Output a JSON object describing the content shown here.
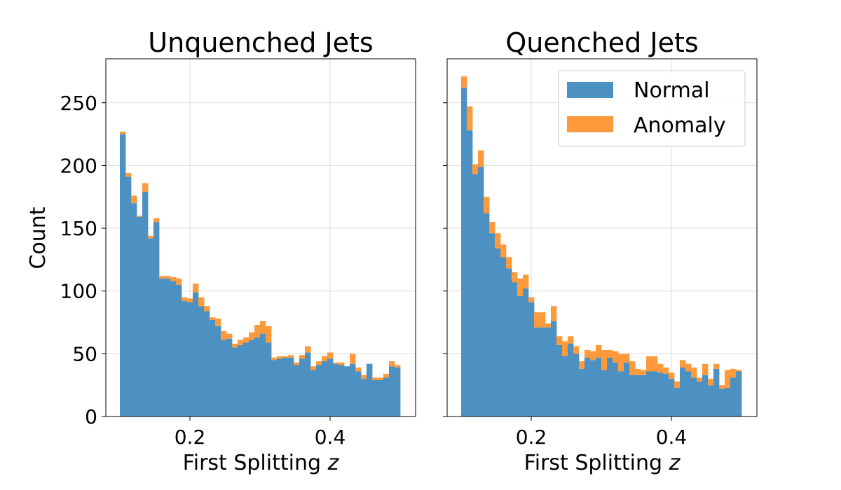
{
  "chart_data": {
    "type": "bar",
    "stacked": true,
    "bins": {
      "start": 0.1,
      "end": 0.5,
      "count": 50
    },
    "ylim": [
      0,
      285
    ],
    "yticks": [
      0,
      50,
      100,
      150,
      200,
      250
    ],
    "xticks": [
      0.2,
      0.4
    ],
    "xtick_labels": [
      "0.2",
      "0.4"
    ],
    "ytick_labels": [
      "0",
      "50",
      "100",
      "150",
      "200",
      "250"
    ],
    "ylabel": "Count",
    "grid": true,
    "legend": {
      "placement": "top-right",
      "entries": [
        {
          "name": "Normal",
          "color": "#4c91c2"
        },
        {
          "name": "Anomaly",
          "color": "#ff9a3c"
        }
      ]
    },
    "panels": [
      {
        "title": "Unquenched Jets",
        "xlabel_text": "First Splitting ",
        "xlabel_var": "z",
        "series": [
          {
            "name": "Normal",
            "color": "#4c91c2",
            "values": [
              225,
              191,
              170,
              159,
              179,
              142,
              155,
              110,
              110,
              108,
              105,
              92,
              91,
              99,
              88,
              84,
              77,
              72,
              61,
              62,
              55,
              57,
              59,
              61,
              63,
              66,
              59,
              45,
              46,
              47,
              47,
              41,
              46,
              51,
              37,
              41,
              44,
              46,
              42,
              41,
              40,
              42,
              36,
              30,
              42,
              29,
              29,
              31,
              40,
              39
            ]
          },
          {
            "name": "Anomaly",
            "color": "#ff9a3c",
            "values": [
              2,
              3,
              6,
              1,
              7,
              2,
              3,
              2,
              2,
              3,
              5,
              3,
              3,
              7,
              7,
              4,
              2,
              6,
              7,
              4,
              3,
              4,
              4,
              6,
              10,
              10,
              13,
              2,
              2,
              1,
              2,
              2,
              3,
              5,
              3,
              3,
              4,
              5,
              1,
              2,
              0,
              8,
              3,
              3,
              0,
              2,
              2,
              3,
              4,
              2
            ]
          }
        ]
      },
      {
        "title": "Quenched Jets",
        "xlabel_text": "First Splitting ",
        "xlabel_var": "z",
        "series": [
          {
            "name": "Normal",
            "color": "#4c91c2",
            "values": [
              262,
              228,
              193,
              199,
              162,
              146,
              134,
              127,
              118,
              107,
              96,
              102,
              91,
              71,
              71,
              71,
              76,
              57,
              48,
              58,
              50,
              38,
              47,
              45,
              47,
              37,
              47,
              43,
              36,
              43,
              33,
              33,
              33,
              36,
              36,
              35,
              34,
              30,
              23,
              39,
              36,
              31,
              28,
              33,
              25,
              38,
              22,
              23,
              31,
              36
            ]
          },
          {
            "name": "Anomaly",
            "color": "#ff9a3c",
            "values": [
              9,
              19,
              8,
              13,
              13,
              9,
              12,
              10,
              9,
              8,
              14,
              11,
              4,
              12,
              12,
              3,
              12,
              7,
              12,
              6,
              6,
              6,
              6,
              7,
              10,
              16,
              6,
              9,
              14,
              7,
              11,
              5,
              4,
              12,
              12,
              7,
              5,
              5,
              5,
              6,
              6,
              8,
              3,
              9,
              5,
              4,
              3,
              14,
              7,
              1
            ]
          }
        ]
      }
    ]
  }
}
